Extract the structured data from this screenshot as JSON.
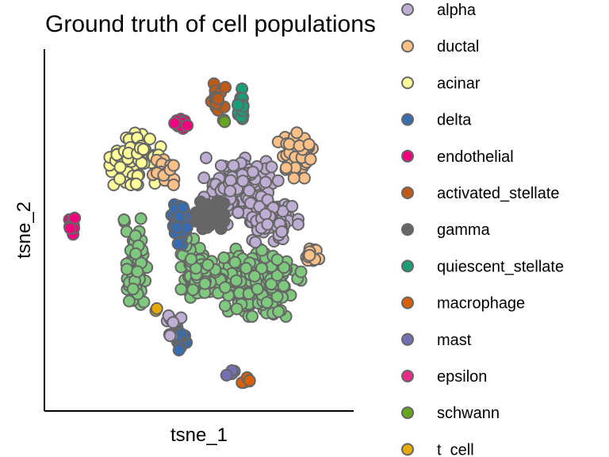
{
  "chart_data": {
    "type": "scatter",
    "title": "Ground truth of cell populations",
    "xlabel": "tsne_1",
    "ylabel": "tsne_2",
    "grid": false,
    "axes_ticks": false,
    "legend_position": "right",
    "legend": [
      {
        "name": "alpha",
        "color": "#beaed4"
      },
      {
        "name": "ductal",
        "color": "#fdc086"
      },
      {
        "name": "acinar",
        "color": "#ffff99"
      },
      {
        "name": "delta",
        "color": "#386cb0"
      },
      {
        "name": "endothelial",
        "color": "#f0027f"
      },
      {
        "name": "activated_stellate",
        "color": "#bf5b17"
      },
      {
        "name": "gamma",
        "color": "#666666"
      },
      {
        "name": "quiescent_stellate",
        "color": "#1b9e77"
      },
      {
        "name": "macrophage",
        "color": "#d95f02"
      },
      {
        "name": "mast",
        "color": "#7570b3"
      },
      {
        "name": "epsilon",
        "color": "#e7298a"
      },
      {
        "name": "schwann",
        "color": "#66a61e"
      },
      {
        "name": "t_cell",
        "color": "#e6ab02"
      }
    ],
    "extra_colors": {
      "beta": "#7fc97f"
    },
    "point_edge_color": "#666666",
    "xlim": [
      0,
      100
    ],
    "ylim": [
      0,
      100
    ],
    "clusters": [
      {
        "label": "beta",
        "cx": 70,
        "cy": 35,
        "rx": 16,
        "ry": 10,
        "n": 230
      },
      {
        "label": "beta",
        "cx": 50,
        "cy": 38,
        "rx": 6,
        "ry": 10,
        "n": 60
      },
      {
        "label": "beta",
        "cx": 28,
        "cy": 40,
        "rx": 4,
        "ry": 14,
        "n": 70
      },
      {
        "label": "alpha",
        "cx": 65,
        "cy": 62,
        "rx": 13,
        "ry": 10,
        "n": 170
      },
      {
        "label": "alpha",
        "cx": 77,
        "cy": 54,
        "rx": 8,
        "ry": 7,
        "n": 60
      },
      {
        "label": "acinar",
        "cx": 28,
        "cy": 72,
        "rx": 9,
        "ry": 8,
        "n": 80
      },
      {
        "label": "ductal",
        "cx": 38,
        "cy": 68,
        "rx": 4,
        "ry": 4,
        "n": 18
      },
      {
        "label": "ductal",
        "cx": 84,
        "cy": 73,
        "rx": 6,
        "ry": 7,
        "n": 50
      },
      {
        "label": "ductal",
        "cx": 90,
        "cy": 43,
        "rx": 3,
        "ry": 3,
        "n": 18
      },
      {
        "label": "delta",
        "cx": 44,
        "cy": 52,
        "rx": 4,
        "ry": 7,
        "n": 55
      },
      {
        "label": "gamma",
        "cx": 53,
        "cy": 55,
        "rx": 6,
        "ry": 4,
        "n": 50
      },
      {
        "label": "delta",
        "cx": 43,
        "cy": 19,
        "rx": 3,
        "ry": 4,
        "n": 18
      },
      {
        "label": "alpha",
        "cx": 41,
        "cy": 23,
        "rx": 3,
        "ry": 4,
        "n": 14
      },
      {
        "label": "endothelial",
        "cx": 44,
        "cy": 82,
        "rx": 3,
        "ry": 2,
        "n": 14
      },
      {
        "label": "endothelial",
        "cx": 6,
        "cy": 52,
        "rx": 1.5,
        "ry": 3,
        "n": 10
      },
      {
        "label": "activated_stellate",
        "cx": 57,
        "cy": 89,
        "rx": 2.5,
        "ry": 5,
        "n": 20
      },
      {
        "label": "quiescent_stellate",
        "cx": 65,
        "cy": 88,
        "rx": 3,
        "ry": 5,
        "n": 16
      },
      {
        "label": "schwann",
        "cx": 59,
        "cy": 83,
        "rx": 1,
        "ry": 1,
        "n": 3
      },
      {
        "label": "mast",
        "cx": 61,
        "cy": 8,
        "rx": 2,
        "ry": 2,
        "n": 6
      },
      {
        "label": "macrophage",
        "cx": 67,
        "cy": 6,
        "rx": 2,
        "ry": 2,
        "n": 6
      },
      {
        "label": "t_cell",
        "cx": 35,
        "cy": 27,
        "rx": 1,
        "ry": 1,
        "n": 2
      }
    ]
  }
}
